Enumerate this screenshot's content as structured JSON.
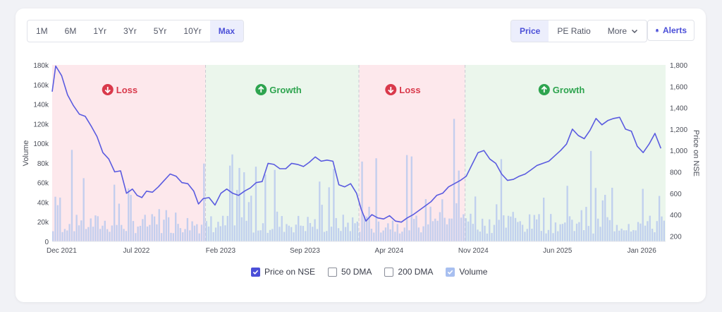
{
  "range_buttons": [
    {
      "label": "1M"
    },
    {
      "label": "6M"
    },
    {
      "label": "1Yr"
    },
    {
      "label": "3Yr"
    },
    {
      "label": "5Yr"
    },
    {
      "label": "10Yr"
    },
    {
      "label": "Max",
      "active": true
    }
  ],
  "metric_buttons": {
    "price": "Price",
    "pe": "PE Ratio",
    "more": "More"
  },
  "alerts_label": "Alerts",
  "legend": {
    "price_nse": "Price on NSE",
    "dma50": "50 DMA",
    "dma200": "200 DMA",
    "volume": "Volume"
  },
  "colors": {
    "accent": "#4b4fd8",
    "price_line": "#5a5be0",
    "volume_bar": "#b9c9ef",
    "loss_zone": "#fde8ec",
    "growth_zone": "#ebf6ec",
    "loss_text": "#d9394b",
    "growth_text": "#2ea44f"
  },
  "chart_data": {
    "type": "line",
    "x_tick_labels": [
      "Dec 2021",
      "Jul 2022",
      "Feb 2023",
      "Sep 2023",
      "Apr 2024",
      "Nov 2024",
      "Jun 2025",
      "Jan 2026"
    ],
    "ylabel_left": "Volume",
    "ylabel_right": "Price on NSE",
    "y_left_ticks": [
      "0",
      "20k",
      "40k",
      "60k",
      "80k",
      "100k",
      "120k",
      "140k",
      "160k",
      "180k"
    ],
    "y_left_range": [
      0,
      180000
    ],
    "y_right_ticks": [
      "200",
      "400",
      "600",
      "800",
      "1,000",
      "1,200",
      "1,400",
      "1,600",
      "1,800"
    ],
    "y_right_range": [
      150,
      1800
    ],
    "zones": [
      {
        "label": "Loss",
        "kind": "loss",
        "start_month": 0,
        "end_month": 13
      },
      {
        "label": "Growth",
        "kind": "growth",
        "start_month": 13,
        "end_month": 26
      },
      {
        "label": "Loss",
        "kind": "loss",
        "start_month": 26,
        "end_month": 35
      },
      {
        "label": "Growth",
        "kind": "growth",
        "start_month": 35,
        "end_month": 52
      }
    ],
    "x_months_total": 52,
    "price_series": {
      "name": "Price on NSE",
      "points": [
        [
          0,
          1550
        ],
        [
          0.3,
          1790
        ],
        [
          0.8,
          1700
        ],
        [
          1.3,
          1520
        ],
        [
          1.8,
          1420
        ],
        [
          2.3,
          1340
        ],
        [
          2.8,
          1320
        ],
        [
          3.3,
          1230
        ],
        [
          3.8,
          1130
        ],
        [
          4.3,
          980
        ],
        [
          4.8,
          920
        ],
        [
          5.3,
          800
        ],
        [
          5.8,
          810
        ],
        [
          6.3,
          600
        ],
        [
          6.8,
          640
        ],
        [
          7.2,
          580
        ],
        [
          7.6,
          560
        ],
        [
          8.0,
          620
        ],
        [
          8.5,
          610
        ],
        [
          9.0,
          660
        ],
        [
          9.5,
          720
        ],
        [
          10.0,
          780
        ],
        [
          10.5,
          760
        ],
        [
          11.0,
          700
        ],
        [
          11.5,
          690
        ],
        [
          12.0,
          620
        ],
        [
          12.4,
          500
        ],
        [
          12.8,
          550
        ],
        [
          13.3,
          560
        ],
        [
          13.8,
          490
        ],
        [
          14.3,
          600
        ],
        [
          14.8,
          640
        ],
        [
          15.3,
          600
        ],
        [
          15.8,
          580
        ],
        [
          16.3,
          620
        ],
        [
          16.8,
          650
        ],
        [
          17.3,
          700
        ],
        [
          17.8,
          710
        ],
        [
          18.3,
          880
        ],
        [
          18.8,
          870
        ],
        [
          19.3,
          830
        ],
        [
          19.8,
          830
        ],
        [
          20.3,
          880
        ],
        [
          20.8,
          870
        ],
        [
          21.3,
          850
        ],
        [
          21.8,
          890
        ],
        [
          22.3,
          940
        ],
        [
          22.8,
          900
        ],
        [
          23.3,
          910
        ],
        [
          23.8,
          900
        ],
        [
          24.3,
          680
        ],
        [
          24.8,
          660
        ],
        [
          25.3,
          690
        ],
        [
          25.8,
          600
        ],
        [
          26.2,
          450
        ],
        [
          26.6,
          340
        ],
        [
          27.1,
          400
        ],
        [
          27.6,
          370
        ],
        [
          28.1,
          360
        ],
        [
          28.6,
          390
        ],
        [
          29.1,
          340
        ],
        [
          29.6,
          330
        ],
        [
          30.1,
          370
        ],
        [
          30.6,
          400
        ],
        [
          31.1,
          440
        ],
        [
          31.6,
          480
        ],
        [
          32.1,
          520
        ],
        [
          32.6,
          580
        ],
        [
          33.1,
          600
        ],
        [
          33.6,
          660
        ],
        [
          34.1,
          690
        ],
        [
          34.6,
          720
        ],
        [
          35.1,
          760
        ],
        [
          35.6,
          870
        ],
        [
          36.1,
          980
        ],
        [
          36.6,
          1000
        ],
        [
          37.1,
          920
        ],
        [
          37.6,
          880
        ],
        [
          38.1,
          780
        ],
        [
          38.6,
          720
        ],
        [
          39.1,
          730
        ],
        [
          39.6,
          760
        ],
        [
          40.1,
          780
        ],
        [
          40.6,
          820
        ],
        [
          41.1,
          860
        ],
        [
          41.6,
          880
        ],
        [
          42.1,
          900
        ],
        [
          42.6,
          950
        ],
        [
          43.1,
          1000
        ],
        [
          43.6,
          1060
        ],
        [
          44.1,
          1200
        ],
        [
          44.6,
          1140
        ],
        [
          45.1,
          1110
        ],
        [
          45.6,
          1190
        ],
        [
          46.1,
          1300
        ],
        [
          46.6,
          1240
        ],
        [
          47.1,
          1280
        ],
        [
          47.6,
          1300
        ],
        [
          48.1,
          1310
        ],
        [
          48.6,
          1200
        ],
        [
          49.1,
          1180
        ],
        [
          49.6,
          1040
        ],
        [
          50.1,
          980
        ],
        [
          50.6,
          1060
        ],
        [
          51.1,
          1160
        ],
        [
          51.6,
          1020
        ]
      ]
    },
    "volume_series": {
      "name": "Volume",
      "max": 180000
    }
  }
}
